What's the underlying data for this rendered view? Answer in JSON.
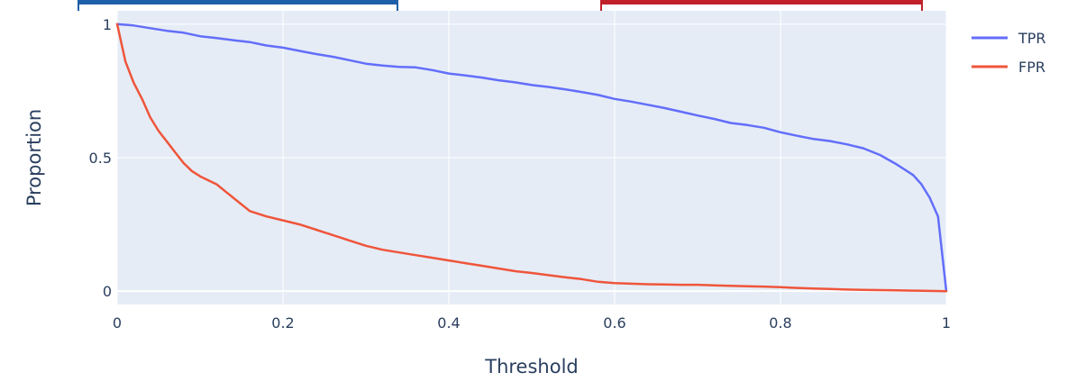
{
  "chart_data": {
    "type": "line",
    "title": "",
    "xlabel": "Threshold",
    "ylabel": "Proportion",
    "xlim": [
      0,
      1
    ],
    "ylim": [
      -0.05,
      1.05
    ],
    "x_ticks": [
      0,
      0.2,
      0.4,
      0.6,
      0.8,
      1
    ],
    "x_tick_labels": [
      "0",
      "0.2",
      "0.4",
      "0.6",
      "0.8",
      "1"
    ],
    "y_ticks": [
      0,
      0.5,
      1
    ],
    "y_tick_labels": [
      "0",
      "0.5",
      "1"
    ],
    "grid": true,
    "legend_position": "top-right",
    "background_color": "#e5ecf6",
    "series": [
      {
        "name": "TPR",
        "color": "#636efa",
        "x": [
          0,
          0.02,
          0.04,
          0.06,
          0.08,
          0.1,
          0.12,
          0.14,
          0.16,
          0.18,
          0.2,
          0.22,
          0.24,
          0.26,
          0.28,
          0.3,
          0.32,
          0.34,
          0.36,
          0.38,
          0.4,
          0.42,
          0.44,
          0.46,
          0.48,
          0.5,
          0.52,
          0.54,
          0.56,
          0.58,
          0.6,
          0.62,
          0.64,
          0.66,
          0.68,
          0.7,
          0.72,
          0.74,
          0.76,
          0.78,
          0.8,
          0.82,
          0.84,
          0.86,
          0.88,
          0.9,
          0.92,
          0.94,
          0.95,
          0.96,
          0.97,
          0.98,
          0.99,
          1.0
        ],
        "y": [
          1.0,
          0.995,
          0.985,
          0.975,
          0.968,
          0.955,
          0.948,
          0.94,
          0.933,
          0.92,
          0.912,
          0.9,
          0.888,
          0.878,
          0.865,
          0.852,
          0.845,
          0.84,
          0.838,
          0.828,
          0.815,
          0.808,
          0.8,
          0.79,
          0.782,
          0.772,
          0.765,
          0.756,
          0.746,
          0.735,
          0.72,
          0.71,
          0.698,
          0.686,
          0.672,
          0.658,
          0.645,
          0.63,
          0.622,
          0.612,
          0.595,
          0.582,
          0.57,
          0.562,
          0.55,
          0.535,
          0.51,
          0.475,
          0.455,
          0.435,
          0.4,
          0.35,
          0.28,
          0.0
        ]
      },
      {
        "name": "FPR",
        "color": "#ef553b",
        "x": [
          0,
          0.01,
          0.02,
          0.03,
          0.04,
          0.05,
          0.06,
          0.07,
          0.08,
          0.09,
          0.1,
          0.12,
          0.14,
          0.16,
          0.18,
          0.2,
          0.22,
          0.24,
          0.26,
          0.28,
          0.3,
          0.32,
          0.34,
          0.36,
          0.38,
          0.4,
          0.42,
          0.44,
          0.46,
          0.48,
          0.5,
          0.52,
          0.54,
          0.56,
          0.58,
          0.6,
          0.62,
          0.64,
          0.66,
          0.68,
          0.7,
          0.72,
          0.74,
          0.76,
          0.78,
          0.8,
          0.82,
          0.84,
          0.86,
          0.88,
          0.9,
          0.92,
          0.94,
          0.96,
          0.98,
          1.0
        ],
        "y": [
          1.0,
          0.86,
          0.78,
          0.72,
          0.65,
          0.6,
          0.56,
          0.52,
          0.48,
          0.45,
          0.43,
          0.4,
          0.35,
          0.3,
          0.28,
          0.265,
          0.25,
          0.23,
          0.21,
          0.19,
          0.17,
          0.155,
          0.145,
          0.135,
          0.125,
          0.115,
          0.105,
          0.095,
          0.085,
          0.075,
          0.068,
          0.06,
          0.052,
          0.045,
          0.035,
          0.03,
          0.028,
          0.026,
          0.025,
          0.024,
          0.024,
          0.022,
          0.02,
          0.018,
          0.017,
          0.015,
          0.012,
          0.01,
          0.008,
          0.006,
          0.005,
          0.004,
          0.003,
          0.002,
          0.001,
          0.0
        ]
      }
    ]
  }
}
